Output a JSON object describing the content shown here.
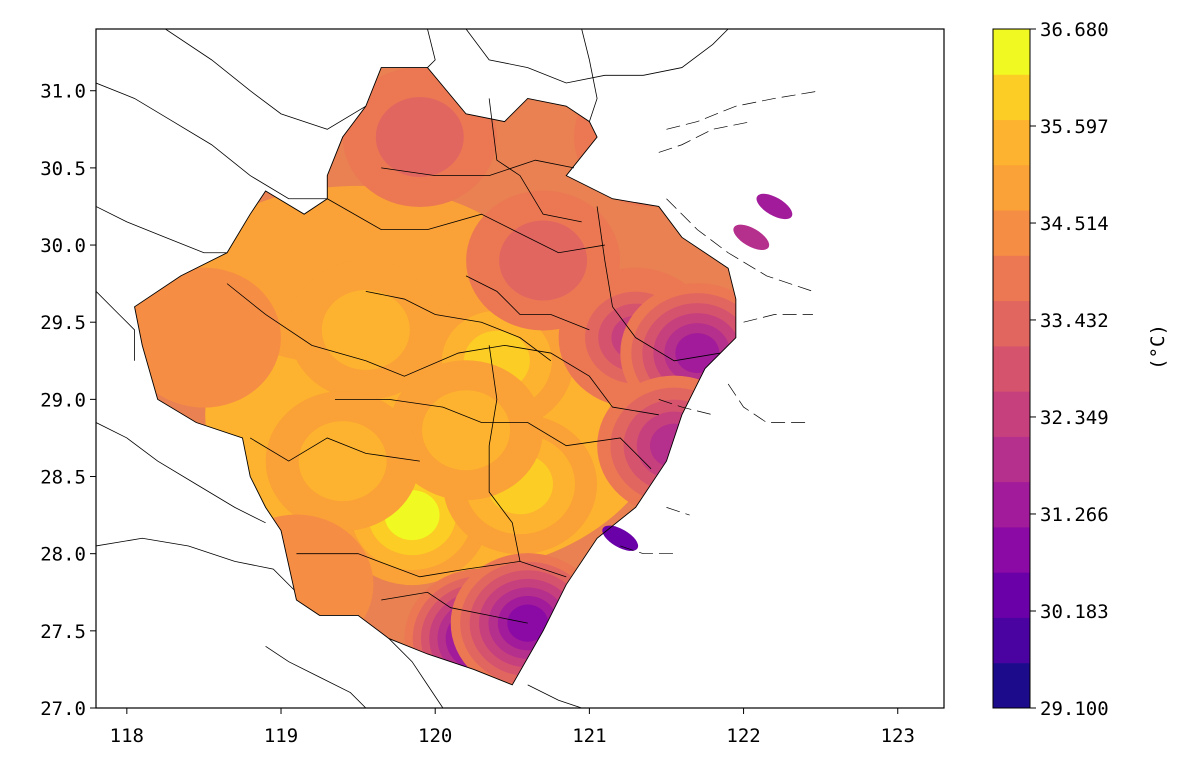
{
  "chart_data": {
    "type": "heatmap",
    "title": "",
    "xlabel": "",
    "ylabel": "",
    "xlim": [
      117.8,
      123.3
    ],
    "ylim": [
      27.0,
      31.4
    ],
    "x_ticks": [
      {
        "value": 118,
        "label": "118"
      },
      {
        "value": 119,
        "label": "119"
      },
      {
        "value": 120,
        "label": "120"
      },
      {
        "value": 121,
        "label": "121"
      },
      {
        "value": 122,
        "label": "122"
      },
      {
        "value": 123,
        "label": "123"
      }
    ],
    "y_ticks": [
      {
        "value": 27.0,
        "label": "27.0"
      },
      {
        "value": 27.5,
        "label": "27.5"
      },
      {
        "value": 28.0,
        "label": "28.0"
      },
      {
        "value": 28.5,
        "label": "28.5"
      },
      {
        "value": 29.0,
        "label": "29.0"
      },
      {
        "value": 29.5,
        "label": "29.5"
      },
      {
        "value": 30.0,
        "label": "30.0"
      },
      {
        "value": 30.5,
        "label": "30.5"
      },
      {
        "value": 31.0,
        "label": "31.0"
      }
    ],
    "colorbar": {
      "label": "(°C)",
      "min": 29.1,
      "max": 36.68,
      "ticks": [
        {
          "value": 29.1,
          "label": "29.100"
        },
        {
          "value": 30.183,
          "label": "30.183"
        },
        {
          "value": 31.266,
          "label": "31.266"
        },
        {
          "value": 32.349,
          "label": "32.349"
        },
        {
          "value": 33.432,
          "label": "33.432"
        },
        {
          "value": 34.514,
          "label": "34.514"
        },
        {
          "value": 35.597,
          "label": "35.597"
        },
        {
          "value": 36.68,
          "label": "36.680"
        }
      ],
      "colors": [
        "#1c0c8c",
        "#4a03a0",
        "#6a00a8",
        "#8b0aa5",
        "#a11b9b",
        "#b52f8c",
        "#c7407e",
        "#d6536e",
        "#e26660",
        "#ec7853",
        "#f68d45",
        "#faa137",
        "#fdb32f",
        "#fccd25",
        "#f0f921"
      ]
    },
    "outline": [
      [
        121.9,
        29.85
      ],
      [
        121.6,
        30.05
      ],
      [
        121.45,
        30.25
      ],
      [
        121.15,
        30.3
      ],
      [
        120.85,
        30.45
      ],
      [
        121.05,
        30.7
      ],
      [
        121.0,
        30.8
      ],
      [
        120.85,
        30.9
      ],
      [
        120.6,
        30.95
      ],
      [
        120.45,
        30.8
      ],
      [
        120.2,
        30.85
      ],
      [
        119.95,
        31.15
      ],
      [
        119.65,
        31.15
      ],
      [
        119.55,
        30.9
      ],
      [
        119.4,
        30.7
      ],
      [
        119.3,
        30.45
      ],
      [
        119.3,
        30.3
      ],
      [
        119.15,
        30.2
      ],
      [
        118.9,
        30.35
      ],
      [
        118.8,
        30.2
      ],
      [
        118.65,
        29.95
      ],
      [
        118.35,
        29.8
      ],
      [
        118.05,
        29.6
      ],
      [
        118.1,
        29.35
      ],
      [
        118.2,
        29.0
      ],
      [
        118.45,
        28.85
      ],
      [
        118.75,
        28.75
      ],
      [
        118.8,
        28.5
      ],
      [
        118.9,
        28.3
      ],
      [
        119.0,
        28.15
      ],
      [
        119.1,
        27.7
      ],
      [
        119.25,
        27.6
      ],
      [
        119.5,
        27.6
      ],
      [
        119.7,
        27.45
      ],
      [
        119.95,
        27.35
      ],
      [
        120.25,
        27.25
      ],
      [
        120.5,
        27.15
      ],
      [
        120.7,
        27.5
      ],
      [
        120.85,
        27.8
      ],
      [
        121.05,
        28.1
      ],
      [
        121.3,
        28.3
      ],
      [
        121.5,
        28.6
      ],
      [
        121.6,
        28.9
      ],
      [
        121.75,
        29.2
      ],
      [
        121.95,
        29.4
      ],
      [
        121.95,
        29.65
      ]
    ],
    "hotspots": [
      {
        "lon": 119.85,
        "lat": 28.25,
        "value": 36.68
      },
      {
        "lon": 120.55,
        "lat": 28.45,
        "value": 36.0
      },
      {
        "lon": 120.4,
        "lat": 29.25,
        "value": 36.0
      },
      {
        "lon": 119.55,
        "lat": 29.45,
        "value": 35.6
      },
      {
        "lon": 120.2,
        "lat": 28.8,
        "value": 35.6
      },
      {
        "lon": 119.4,
        "lat": 28.6,
        "value": 35.4
      },
      {
        "lon": 120.7,
        "lat": 29.9,
        "value": 33.4
      },
      {
        "lon": 119.9,
        "lat": 30.7,
        "value": 33.4
      },
      {
        "lon": 121.3,
        "lat": 29.4,
        "value": 32.3
      },
      {
        "lon": 121.7,
        "lat": 29.3,
        "value": 31.5
      },
      {
        "lon": 120.3,
        "lat": 27.45,
        "value": 30.6
      },
      {
        "lon": 120.6,
        "lat": 27.55,
        "value": 31.0
      },
      {
        "lon": 121.55,
        "lat": 28.7,
        "value": 32.0
      },
      {
        "lon": 118.5,
        "lat": 29.4,
        "value": 34.2
      },
      {
        "lon": 119.1,
        "lat": 27.8,
        "value": 34.6
      },
      {
        "lon": 121.4,
        "lat": 30.7,
        "value": 33.6
      }
    ],
    "islands": [
      {
        "lon": 122.05,
        "lat": 30.05,
        "value": 31.8
      },
      {
        "lon": 122.2,
        "lat": 30.25,
        "value": 31.2
      },
      {
        "lon": 121.2,
        "lat": 28.1,
        "value": 30.2
      }
    ],
    "boundaries": [
      [
        [
          119.65,
          30.5
        ],
        [
          120.0,
          30.45
        ],
        [
          120.35,
          30.45
        ],
        [
          120.65,
          30.55
        ],
        [
          120.9,
          30.5
        ]
      ],
      [
        [
          120.35,
          30.95
        ],
        [
          120.4,
          30.55
        ],
        [
          120.55,
          30.45
        ],
        [
          120.7,
          30.2
        ],
        [
          120.95,
          30.15
        ]
      ],
      [
        [
          119.3,
          30.3
        ],
        [
          119.65,
          30.1
        ],
        [
          119.95,
          30.1
        ],
        [
          120.3,
          30.2
        ],
        [
          120.5,
          30.1
        ],
        [
          120.8,
          29.95
        ],
        [
          121.1,
          30.0
        ]
      ],
      [
        [
          121.05,
          30.25
        ],
        [
          121.1,
          29.9
        ],
        [
          121.15,
          29.6
        ],
        [
          121.3,
          29.4
        ],
        [
          121.55,
          29.25
        ],
        [
          121.85,
          29.3
        ]
      ],
      [
        [
          118.65,
          29.75
        ],
        [
          118.9,
          29.55
        ],
        [
          119.2,
          29.35
        ],
        [
          119.55,
          29.25
        ],
        [
          119.8,
          29.15
        ],
        [
          120.15,
          29.3
        ],
        [
          120.45,
          29.35
        ],
        [
          120.75,
          29.3
        ],
        [
          121.0,
          29.15
        ],
        [
          121.15,
          28.95
        ],
        [
          121.45,
          28.9
        ]
      ],
      [
        [
          119.55,
          29.7
        ],
        [
          119.8,
          29.65
        ],
        [
          120.0,
          29.55
        ],
        [
          120.3,
          29.5
        ],
        [
          120.55,
          29.4
        ],
        [
          120.75,
          29.25
        ]
      ],
      [
        [
          119.35,
          29.0
        ],
        [
          119.7,
          29.0
        ],
        [
          120.05,
          28.95
        ],
        [
          120.3,
          28.85
        ],
        [
          120.6,
          28.85
        ],
        [
          120.85,
          28.7
        ],
        [
          121.2,
          28.75
        ],
        [
          121.4,
          28.55
        ]
      ],
      [
        [
          118.8,
          28.75
        ],
        [
          119.05,
          28.6
        ],
        [
          119.3,
          28.75
        ],
        [
          119.55,
          28.65
        ],
        [
          119.9,
          28.6
        ]
      ],
      [
        [
          120.35,
          29.35
        ],
        [
          120.4,
          29.0
        ],
        [
          120.35,
          28.7
        ],
        [
          120.35,
          28.4
        ],
        [
          120.5,
          28.2
        ],
        [
          120.55,
          27.95
        ]
      ],
      [
        [
          119.1,
          28.0
        ],
        [
          119.5,
          28.0
        ],
        [
          119.9,
          27.85
        ],
        [
          120.2,
          27.9
        ],
        [
          120.55,
          27.95
        ],
        [
          120.85,
          27.85
        ]
      ],
      [
        [
          119.65,
          27.7
        ],
        [
          119.95,
          27.75
        ],
        [
          120.1,
          27.65
        ],
        [
          120.35,
          27.6
        ],
        [
          120.6,
          27.55
        ]
      ],
      [
        [
          120.2,
          29.8
        ],
        [
          120.4,
          29.7
        ],
        [
          120.55,
          29.55
        ],
        [
          120.75,
          29.55
        ],
        [
          121.0,
          29.45
        ]
      ]
    ],
    "outer_boundaries": [
      [
        [
          117.8,
          31.05
        ],
        [
          118.05,
          30.95
        ],
        [
          118.3,
          30.8
        ],
        [
          118.55,
          30.65
        ],
        [
          118.8,
          30.45
        ],
        [
          119.05,
          30.3
        ],
        [
          119.3,
          30.3
        ]
      ],
      [
        [
          118.25,
          31.4
        ],
        [
          118.55,
          31.2
        ],
        [
          118.8,
          31.0
        ],
        [
          119.0,
          30.85
        ],
        [
          119.3,
          30.75
        ],
        [
          119.55,
          30.9
        ]
      ],
      [
        [
          117.8,
          30.25
        ],
        [
          118.0,
          30.15
        ],
        [
          118.25,
          30.05
        ],
        [
          118.5,
          29.95
        ],
        [
          118.65,
          29.95
        ]
      ],
      [
        [
          117.8,
          29.7
        ],
        [
          117.95,
          29.55
        ],
        [
          118.05,
          29.45
        ],
        [
          118.05,
          29.25
        ]
      ],
      [
        [
          117.8,
          28.85
        ],
        [
          118.0,
          28.75
        ],
        [
          118.2,
          28.6
        ],
        [
          118.45,
          28.45
        ],
        [
          118.7,
          28.3
        ],
        [
          118.9,
          28.2
        ]
      ],
      [
        [
          117.8,
          28.05
        ],
        [
          118.1,
          28.1
        ],
        [
          118.4,
          28.05
        ],
        [
          118.7,
          27.95
        ],
        [
          118.95,
          27.9
        ],
        [
          119.1,
          27.75
        ]
      ],
      [
        [
          118.9,
          27.4
        ],
        [
          119.05,
          27.3
        ],
        [
          119.25,
          27.2
        ],
        [
          119.45,
          27.1
        ],
        [
          119.55,
          27.0
        ]
      ],
      [
        [
          119.7,
          27.45
        ],
        [
          119.85,
          27.3
        ],
        [
          119.95,
          27.15
        ],
        [
          120.05,
          27.0
        ]
      ],
      [
        [
          120.2,
          31.4
        ],
        [
          120.35,
          31.2
        ],
        [
          120.6,
          31.15
        ],
        [
          120.85,
          31.05
        ],
        [
          121.1,
          31.1
        ],
        [
          121.35,
          31.1
        ],
        [
          121.6,
          31.15
        ],
        [
          121.8,
          31.3
        ],
        [
          121.9,
          31.4
        ]
      ],
      [
        [
          120.95,
          31.4
        ],
        [
          121.0,
          31.2
        ],
        [
          121.05,
          30.95
        ],
        [
          121.0,
          30.8
        ]
      ],
      [
        [
          119.95,
          31.4
        ],
        [
          120.0,
          31.2
        ],
        [
          119.95,
          31.15
        ]
      ],
      [
        [
          120.6,
          27.15
        ],
        [
          120.8,
          27.05
        ],
        [
          120.95,
          27.0
        ]
      ]
    ],
    "sea_lines": [
      [
        [
          121.5,
          30.75
        ],
        [
          121.7,
          30.8
        ],
        [
          121.95,
          30.9
        ],
        [
          122.2,
          30.95
        ],
        [
          122.5,
          31.0
        ]
      ],
      [
        [
          121.45,
          30.6
        ],
        [
          121.6,
          30.65
        ],
        [
          121.8,
          30.75
        ],
        [
          122.05,
          30.8
        ]
      ],
      [
        [
          121.5,
          30.3
        ],
        [
          121.7,
          30.1
        ],
        [
          121.9,
          29.95
        ],
        [
          122.15,
          29.8
        ],
        [
          122.45,
          29.7
        ]
      ],
      [
        [
          122.0,
          29.5
        ],
        [
          122.2,
          29.55
        ],
        [
          122.45,
          29.55
        ]
      ],
      [
        [
          121.9,
          29.1
        ],
        [
          122.0,
          28.95
        ],
        [
          122.15,
          28.85
        ],
        [
          122.4,
          28.85
        ]
      ],
      [
        [
          121.45,
          29.0
        ],
        [
          121.6,
          28.95
        ],
        [
          121.8,
          28.9
        ]
      ],
      [
        [
          121.2,
          28.05
        ],
        [
          121.35,
          28.0
        ],
        [
          121.55,
          28.0
        ]
      ],
      [
        [
          121.5,
          28.3
        ],
        [
          121.65,
          28.25
        ]
      ]
    ]
  }
}
